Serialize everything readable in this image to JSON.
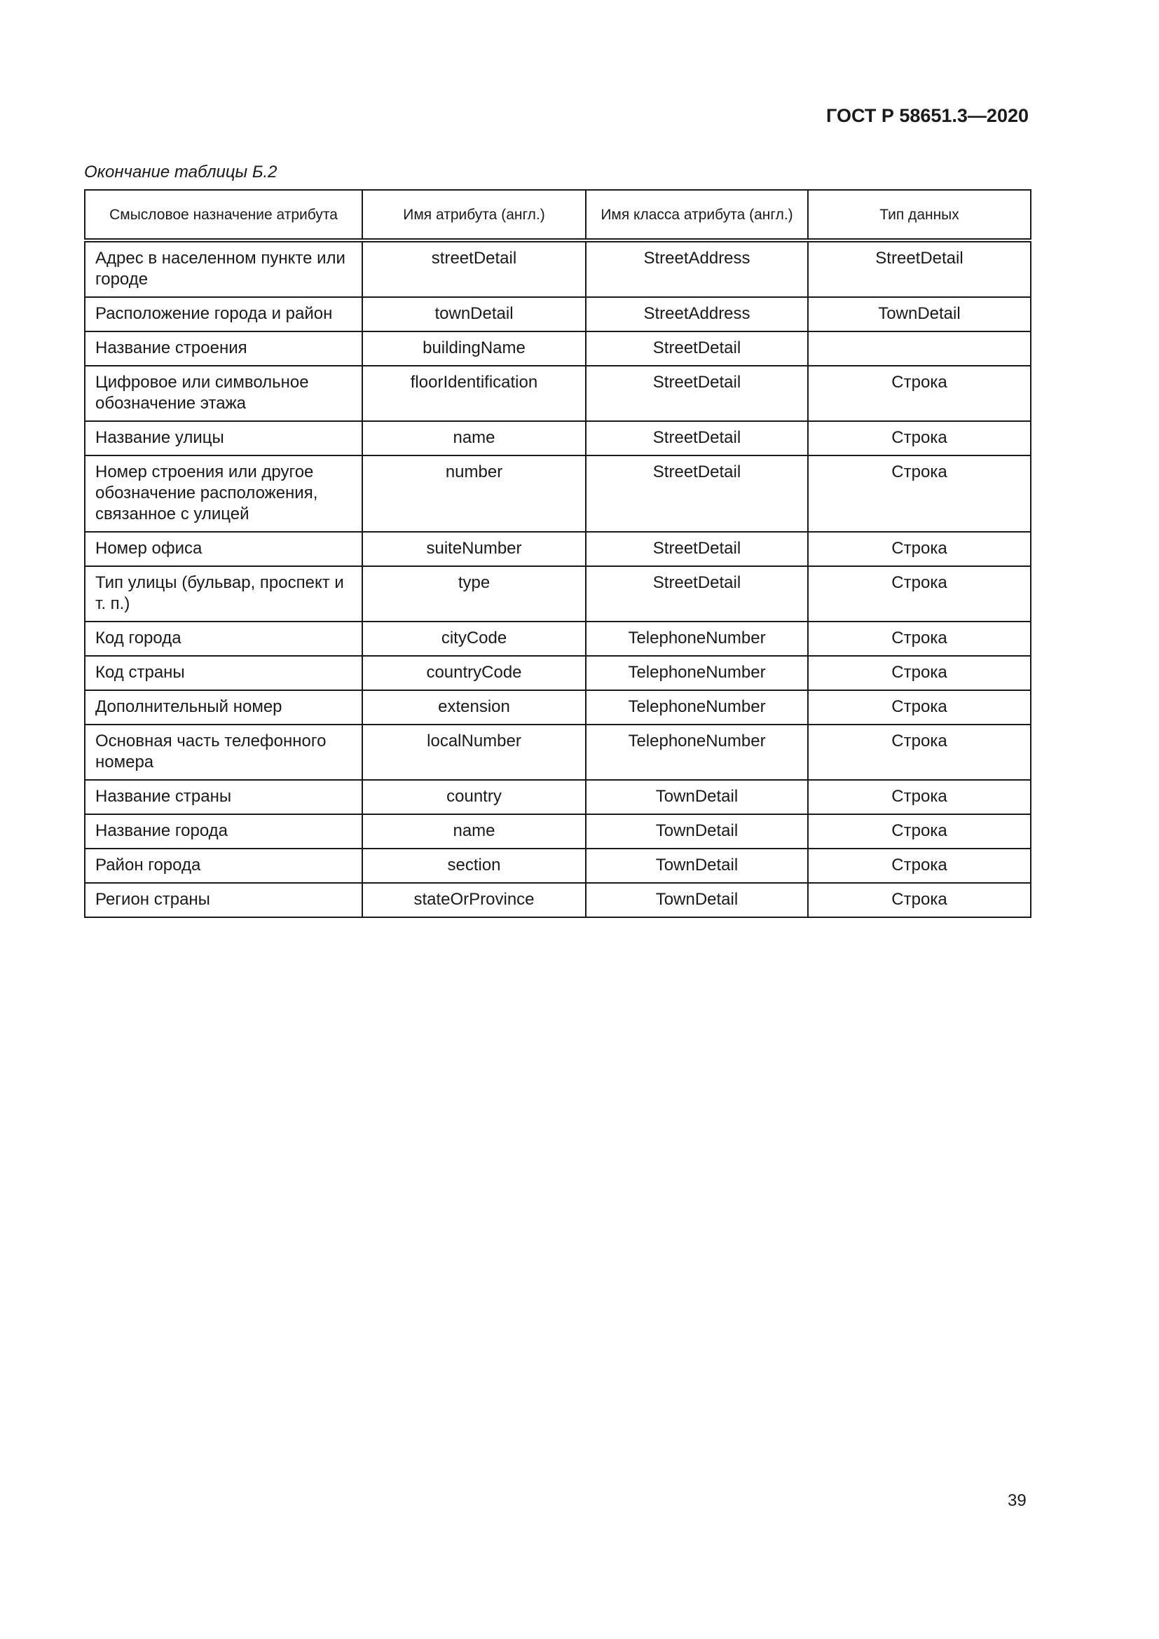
{
  "header": {
    "doc_code": "ГОСТ Р 58651.3—2020"
  },
  "caption": "Окончание таблицы Б.2",
  "table": {
    "columns": [
      "Смысловое назначение атрибута",
      "Имя атрибута (англ.)",
      "Имя класса атрибута (англ.)",
      "Тип данных"
    ],
    "rows": [
      [
        "Адрес в населенном пункте или городе",
        "streetDetail",
        "StreetAddress",
        "StreetDetail"
      ],
      [
        "Расположение города и район",
        "townDetail",
        "StreetAddress",
        "TownDetail"
      ],
      [
        "Название строения",
        "buildingName",
        "StreetDetail",
        ""
      ],
      [
        "Цифровое или символьное обозначение этажа",
        "floorIdentification",
        "StreetDetail",
        "Строка"
      ],
      [
        "Название улицы",
        "name",
        "StreetDetail",
        "Строка"
      ],
      [
        "Номер строения или другое обозначение расположения, связанное с улицей",
        "number",
        "StreetDetail",
        "Строка"
      ],
      [
        "Номер офиса",
        "suiteNumber",
        "StreetDetail",
        "Строка"
      ],
      [
        "Тип улицы (бульвар, проспект и т. п.)",
        "type",
        "StreetDetail",
        "Строка"
      ],
      [
        "Код города",
        "cityCode",
        "TelephoneNumber",
        "Строка"
      ],
      [
        "Код страны",
        "countryCode",
        "TelephoneNumber",
        "Строка"
      ],
      [
        "Дополнительный номер",
        "extension",
        "TelephoneNumber",
        "Строка"
      ],
      [
        "Основная часть телефонного номера",
        "localNumber",
        "TelephoneNumber",
        "Строка"
      ],
      [
        "Название страны",
        "country",
        "TownDetail",
        "Строка"
      ],
      [
        "Название города",
        "name",
        "TownDetail",
        "Строка"
      ],
      [
        "Район города",
        "section",
        "TownDetail",
        "Строка"
      ],
      [
        "Регион страны",
        "stateOrProvince",
        "TownDetail",
        "Строка"
      ]
    ]
  },
  "footer": {
    "page_number": "39"
  }
}
